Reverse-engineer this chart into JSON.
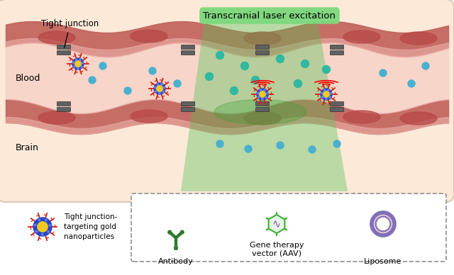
{
  "bg_color": "#fce9d8",
  "vessel_dark": "#c0605a",
  "vessel_light": "#e8a8a0",
  "blood_space": "#f5c8c0",
  "brain_area": "#fce9d8",
  "dot_blue": "#4ab0d0",
  "dot_teal": "#30b8a0",
  "nano_gold": "#f0c820",
  "nano_blue": "#2845c8",
  "nano_red": "#d82010",
  "tj_color": "#606060",
  "laser_color": "#50c050",
  "laser_alpha": 0.38,
  "antibody_color": "#2d7a2d",
  "gene_color": "#3ab030",
  "gene_wave_color": "#9060c0",
  "liposome_purple": "#8070b8",
  "liposome_pink": "#f0d0d0",
  "label_tj": "Tight junction",
  "label_blood": "Blood",
  "label_brain": "Brain",
  "label_laser": "Transcranial laser excitation",
  "label_nano": "Tight junction-\ntargeting gold\nnanoparticles",
  "label_antibody": "Antibody",
  "label_gene": "Gene therapy\nvector (AAV)",
  "label_liposome": "Liposome"
}
